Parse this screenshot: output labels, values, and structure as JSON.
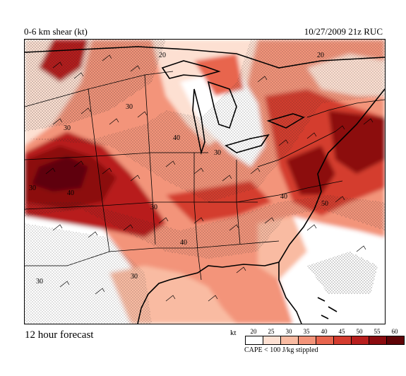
{
  "header": {
    "title": "0-6 km shear (kt)",
    "valid_time": "10/27/2009  21z  RUC"
  },
  "footer": {
    "forecast_label": "12 hour forecast",
    "legend_unit": "kt",
    "legend_note": "CAPE < 100 J/kg stippled"
  },
  "legend": {
    "ticks": [
      "20",
      "25",
      "30",
      "35",
      "40",
      "45",
      "50",
      "55",
      "60"
    ],
    "colors": [
      "#ffffff",
      "#fde0d2",
      "#f9bba2",
      "#f3947a",
      "#e8654e",
      "#d43c2f",
      "#b81f1e",
      "#8c0c10",
      "#5f0407"
    ]
  },
  "map_labels": {
    "c1": "20",
    "c2": "30",
    "c3": "20",
    "c4": "30",
    "c5": "40",
    "c6": "30",
    "c7": "30",
    "c8": "40",
    "c9": "30",
    "c10": "40",
    "c11": "50",
    "c12": "40",
    "c13": "30",
    "c14": "30"
  }
}
